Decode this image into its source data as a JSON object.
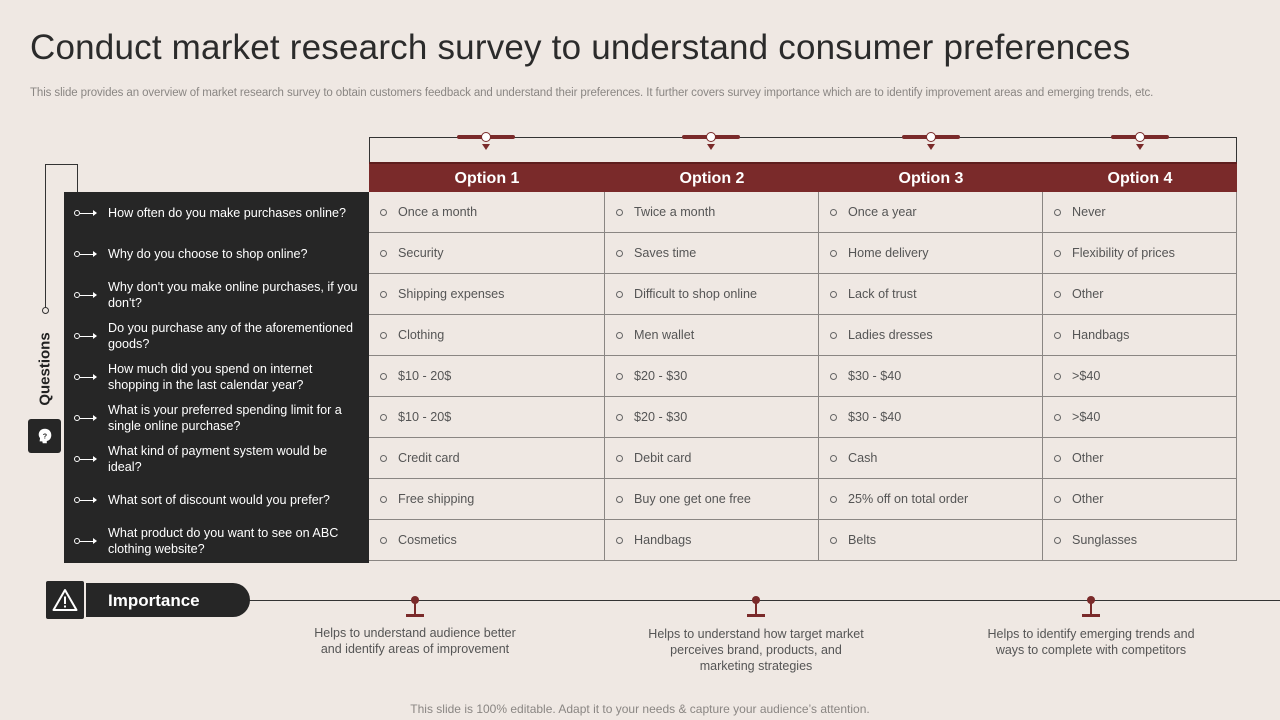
{
  "title": "Conduct market research survey to understand consumer preferences",
  "subtitle": "This slide provides an overview of market research survey to obtain customers feedback and understand their preferences. It further covers survey importance which are to identify improvement areas and emerging trends, etc.",
  "questions_label": "Questions",
  "questions_icon": "head-question-icon",
  "options": [
    "Option 1",
    "Option 2",
    "Option 3",
    "Option 4"
  ],
  "colors": {
    "accent": "#7a2a2a",
    "dark": "#262626",
    "background": "#efe8e3"
  },
  "rows": [
    {
      "question": "How often do you make purchases online?",
      "answers": [
        "Once a month",
        "Twice a month",
        "Once a year",
        "Never"
      ]
    },
    {
      "question": "Why do you choose to shop online?",
      "answers": [
        "Security",
        "Saves time",
        "Home delivery",
        "Flexibility of prices"
      ]
    },
    {
      "question": "Why don't you make online purchases, if you don't?",
      "answers": [
        "Shipping expenses",
        "Difficult to shop online",
        "Lack of trust",
        "Other"
      ]
    },
    {
      "question": "Do you purchase any of the aforementioned  goods?",
      "answers": [
        "Clothing",
        "Men wallet",
        "Ladies dresses",
        "Handbags"
      ]
    },
    {
      "question": "How much did you spend on internet shopping in the last calendar year?",
      "answers": [
        "$10 - 20$",
        "$20 - $30",
        "$30 - $40",
        ">$40"
      ]
    },
    {
      "question": "What is your preferred  spending limit for a single online purchase?",
      "answers": [
        "$10 - 20$",
        "$20 - $30",
        "$30 - $40",
        ">$40"
      ]
    },
    {
      "question": "What kind of payment system would be ideal?",
      "answers": [
        "Credit card",
        "Debit card",
        "Cash",
        "Other"
      ]
    },
    {
      "question": "What sort of discount would you prefer?",
      "answers": [
        "Free shipping",
        "Buy one get one free",
        "25% off on total order",
        "Other"
      ]
    },
    {
      "question": "What product do you want to see on ABC clothing website?",
      "answers": [
        "Cosmetics",
        "Handbags",
        "Belts",
        "Sunglasses"
      ]
    }
  ],
  "importance": {
    "label": "Importance",
    "icon": "warning-icon",
    "points": [
      "Helps to understand audience better and identify areas of improvement",
      "Helps to understand how target market perceives  brand,  products, and marketing strategies",
      "Helps to identify emerging trends and ways to complete with competitors"
    ]
  },
  "footer": "This slide is 100% editable. Adapt it to your needs & capture your audience’s attention."
}
